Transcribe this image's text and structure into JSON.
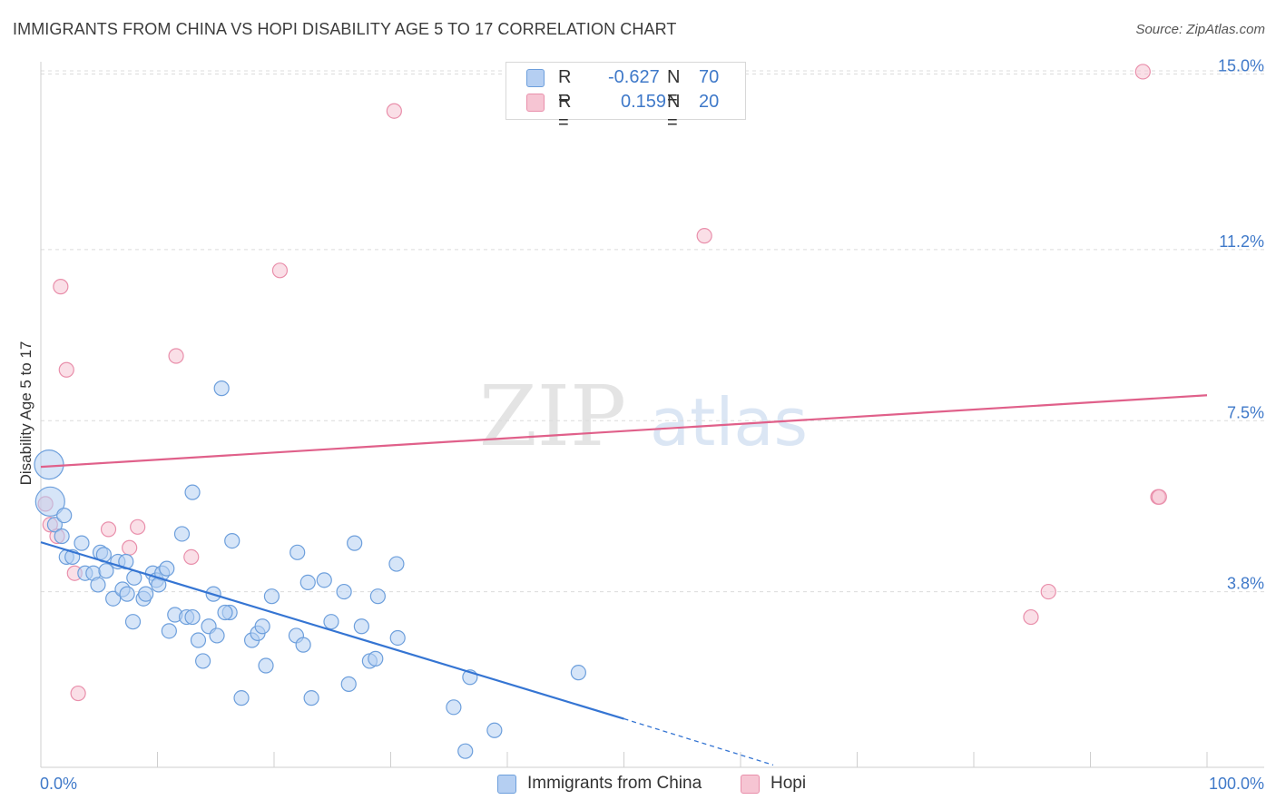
{
  "title": "IMMIGRANTS FROM CHINA VS HOPI DISABILITY AGE 5 TO 17 CORRELATION CHART",
  "source": "Source: ZipAtlas.com",
  "watermark": {
    "left": "ZIP",
    "right": "atlas"
  },
  "legend": {
    "rows": [
      {
        "r_label": "R =",
        "r_value": "-0.627",
        "n_label": "N =",
        "n_value": "70"
      },
      {
        "r_label": "R =",
        "r_value": "0.159",
        "n_label": "N =",
        "n_value": "20"
      }
    ]
  },
  "bottom_legend": [
    "Immigrants from China",
    "Hopi"
  ],
  "colors": {
    "china_fill": "#b5cff2",
    "china_stroke": "#6d9fdc",
    "china_line": "#3575d3",
    "hopi_fill": "#f6c5d3",
    "hopi_stroke": "#e98fab",
    "hopi_line": "#e0608a",
    "tick_label": "#3f79c9",
    "grid": "#dcdcdc"
  },
  "chart_data": {
    "type": "scatter",
    "title": "IMMIGRANTS FROM CHINA VS HOPI DISABILITY AGE 5 TO 17 CORRELATION CHART",
    "xlabel": "",
    "ylabel": "Disability Age 5 to 17",
    "xlim": [
      0,
      100
    ],
    "ylim": [
      0,
      15.4
    ],
    "x_tick_labels": [
      {
        "value": 0,
        "label": "0.0%"
      },
      {
        "value": 100,
        "label": "100.0%"
      }
    ],
    "y_ticks": [
      {
        "value": 3.8,
        "label": "3.8%"
      },
      {
        "value": 7.5,
        "label": "7.5%"
      },
      {
        "value": 11.2,
        "label": "11.2%"
      },
      {
        "value": 15.0,
        "label": "15.0%"
      }
    ],
    "series": [
      {
        "name": "Immigrants from China",
        "r": -0.627,
        "n": 70,
        "trend": {
          "x0": 0,
          "y0": 4.87,
          "x1": 50,
          "y1": 1.05,
          "dash_to_x": 62.8,
          "dash_to_y": 0.05
        },
        "points": [
          {
            "x": 0.7,
            "y": 6.55,
            "big": true
          },
          {
            "x": 0.8,
            "y": 5.75,
            "big": true
          },
          {
            "x": 1.2,
            "y": 5.25
          },
          {
            "x": 1.8,
            "y": 5.0
          },
          {
            "x": 2.0,
            "y": 5.45
          },
          {
            "x": 2.2,
            "y": 4.55
          },
          {
            "x": 2.7,
            "y": 4.55
          },
          {
            "x": 3.5,
            "y": 4.85
          },
          {
            "x": 3.8,
            "y": 4.2
          },
          {
            "x": 4.5,
            "y": 4.2
          },
          {
            "x": 4.9,
            "y": 3.95
          },
          {
            "x": 5.1,
            "y": 4.65
          },
          {
            "x": 5.4,
            "y": 4.6
          },
          {
            "x": 5.6,
            "y": 4.25
          },
          {
            "x": 6.2,
            "y": 3.65
          },
          {
            "x": 6.6,
            "y": 4.45
          },
          {
            "x": 7.0,
            "y": 3.85
          },
          {
            "x": 7.4,
            "y": 3.75
          },
          {
            "x": 7.9,
            "y": 3.15
          },
          {
            "x": 8.0,
            "y": 4.1
          },
          {
            "x": 8.8,
            "y": 3.65
          },
          {
            "x": 9.0,
            "y": 3.75
          },
          {
            "x": 9.6,
            "y": 4.2
          },
          {
            "x": 9.9,
            "y": 4.05
          },
          {
            "x": 10.4,
            "y": 4.2
          },
          {
            "x": 10.8,
            "y": 4.3
          },
          {
            "x": 11.0,
            "y": 2.95
          },
          {
            "x": 11.5,
            "y": 3.3
          },
          {
            "x": 12.1,
            "y": 5.05
          },
          {
            "x": 12.5,
            "y": 3.25
          },
          {
            "x": 13.0,
            "y": 3.25
          },
          {
            "x": 13.0,
            "y": 5.95
          },
          {
            "x": 13.5,
            "y": 2.75
          },
          {
            "x": 13.9,
            "y": 2.3
          },
          {
            "x": 14.4,
            "y": 3.05
          },
          {
            "x": 14.8,
            "y": 3.75
          },
          {
            "x": 15.1,
            "y": 2.85
          },
          {
            "x": 15.5,
            "y": 8.2
          },
          {
            "x": 16.2,
            "y": 3.35
          },
          {
            "x": 16.4,
            "y": 4.9
          },
          {
            "x": 17.2,
            "y": 1.5
          },
          {
            "x": 18.1,
            "y": 2.75
          },
          {
            "x": 18.6,
            "y": 2.9
          },
          {
            "x": 19.0,
            "y": 3.05
          },
          {
            "x": 19.3,
            "y": 2.2
          },
          {
            "x": 19.8,
            "y": 3.7
          },
          {
            "x": 21.9,
            "y": 2.85
          },
          {
            "x": 22.0,
            "y": 4.65
          },
          {
            "x": 22.5,
            "y": 2.65
          },
          {
            "x": 22.9,
            "y": 4.0
          },
          {
            "x": 23.2,
            "y": 1.5
          },
          {
            "x": 24.9,
            "y": 3.15
          },
          {
            "x": 24.3,
            "y": 4.05
          },
          {
            "x": 26.0,
            "y": 3.8
          },
          {
            "x": 26.4,
            "y": 1.8
          },
          {
            "x": 26.9,
            "y": 4.85
          },
          {
            "x": 27.5,
            "y": 3.05
          },
          {
            "x": 28.2,
            "y": 2.3
          },
          {
            "x": 28.7,
            "y": 2.35
          },
          {
            "x": 28.9,
            "y": 3.7
          },
          {
            "x": 30.5,
            "y": 4.4
          },
          {
            "x": 30.6,
            "y": 2.8
          },
          {
            "x": 35.4,
            "y": 1.3
          },
          {
            "x": 36.4,
            "y": 0.35
          },
          {
            "x": 36.8,
            "y": 1.95
          },
          {
            "x": 38.9,
            "y": 0.8
          },
          {
            "x": 46.1,
            "y": 2.05
          },
          {
            "x": 10.1,
            "y": 3.95
          },
          {
            "x": 7.3,
            "y": 4.45
          },
          {
            "x": 15.8,
            "y": 3.35
          }
        ]
      },
      {
        "name": "Hopi",
        "r": 0.159,
        "n": 20,
        "trend": {
          "x0": 0,
          "y0": 6.5,
          "x1": 100,
          "y1": 8.05
        },
        "points": [
          {
            "x": 0.4,
            "y": 5.7
          },
          {
            "x": 0.8,
            "y": 5.25
          },
          {
            "x": 1.4,
            "y": 5.0
          },
          {
            "x": 1.7,
            "y": 10.4
          },
          {
            "x": 2.2,
            "y": 8.6
          },
          {
            "x": 2.9,
            "y": 4.2
          },
          {
            "x": 3.2,
            "y": 1.6
          },
          {
            "x": 5.8,
            "y": 5.15
          },
          {
            "x": 7.6,
            "y": 4.75
          },
          {
            "x": 8.3,
            "y": 5.2
          },
          {
            "x": 11.6,
            "y": 8.9
          },
          {
            "x": 12.9,
            "y": 4.55
          },
          {
            "x": 20.5,
            "y": 10.75
          },
          {
            "x": 30.3,
            "y": 14.2
          },
          {
            "x": 56.9,
            "y": 11.5
          },
          {
            "x": 84.9,
            "y": 3.25
          },
          {
            "x": 86.4,
            "y": 3.8
          },
          {
            "x": 94.5,
            "y": 15.05
          },
          {
            "x": 95.8,
            "y": 5.85
          },
          {
            "x": 95.9,
            "y": 5.85
          }
        ]
      }
    ]
  }
}
